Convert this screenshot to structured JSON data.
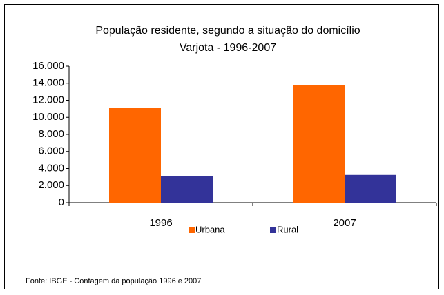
{
  "chart_data": {
    "type": "bar",
    "title": "População residente, segundo a situação do domicílio",
    "subtitle": "Varjota - 1996-2007",
    "categories": [
      "1996",
      "2007"
    ],
    "series": [
      {
        "name": "Urbana",
        "color": "#ff6600",
        "values": [
          11100,
          13800
        ]
      },
      {
        "name": "Rural",
        "color": "#333399",
        "values": [
          3150,
          3250
        ]
      }
    ],
    "ylim": [
      0,
      16000
    ],
    "yticks": [
      0,
      {
        "value": 2000,
        "label": "2.000"
      },
      {
        "value": 4000,
        "label": "4.000"
      },
      {
        "value": 6000,
        "label": "6.000"
      },
      {
        "value": 8000,
        "label": "8.000"
      },
      {
        "value": 10000,
        "label": "10.000"
      },
      {
        "value": 12000,
        "label": "12.000"
      },
      {
        "value": 14000,
        "label": "14.000"
      },
      {
        "value": 16000,
        "label": "16.000"
      }
    ],
    "legend": "bottom",
    "source": "Fonte: IBGE - Contagem da população 1996 e 2007"
  }
}
